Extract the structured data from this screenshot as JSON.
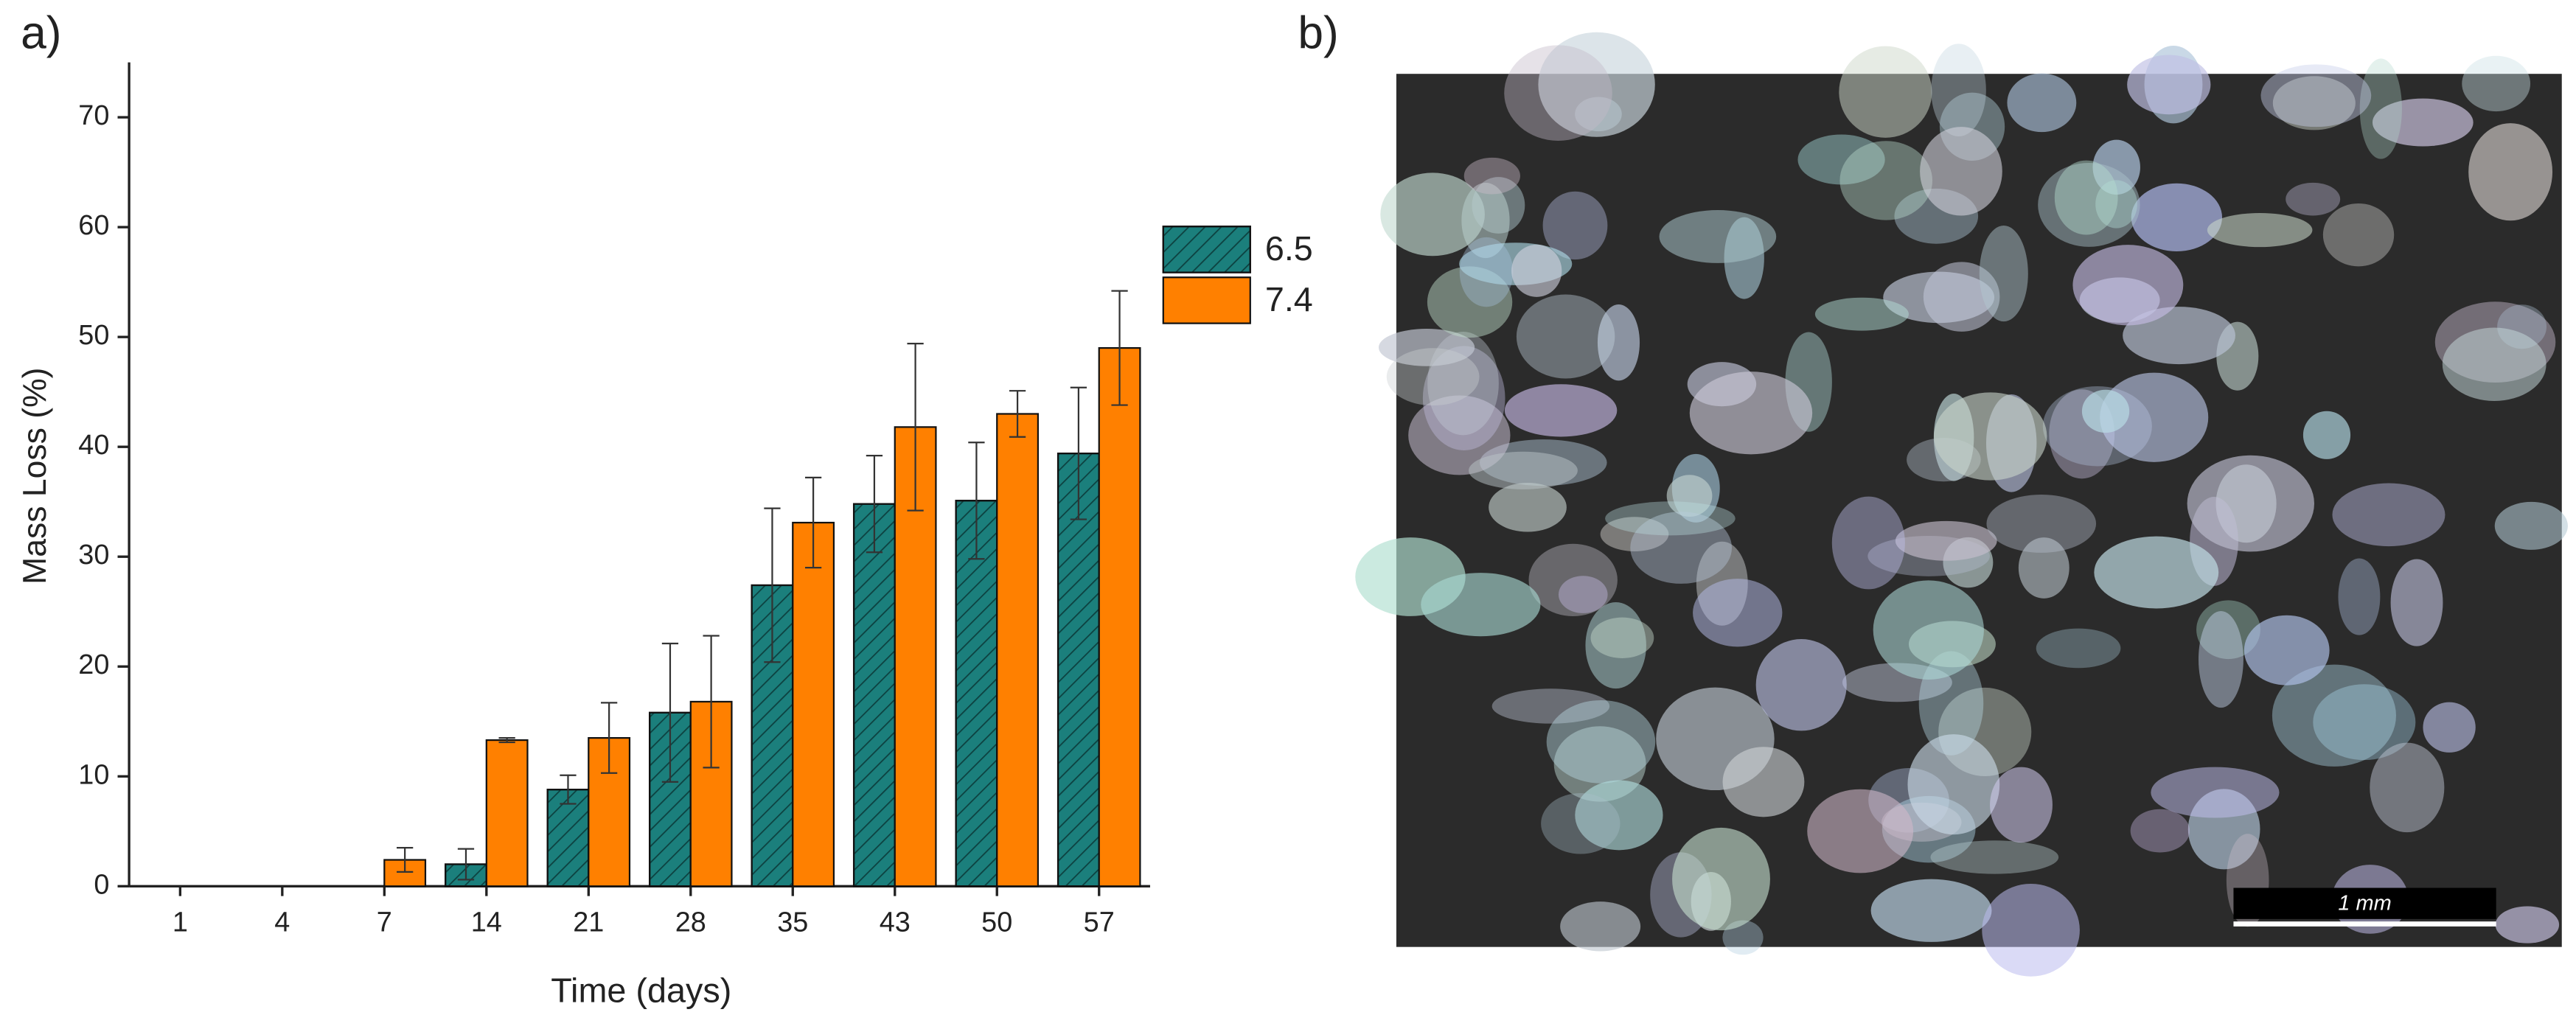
{
  "panel_a": {
    "label": "a)"
  },
  "chart_data": {
    "type": "bar",
    "x_label": "Time (days)",
    "y_label": "Mass Loss (%)",
    "categories": [
      "1",
      "4",
      "7",
      "14",
      "21",
      "28",
      "35",
      "43",
      "50",
      "57"
    ],
    "series": [
      {
        "name": "6.5",
        "color": "#1b7f7c",
        "hatch": true,
        "values": [
          0,
          0,
          0,
          2,
          8.8,
          15.8,
          27.4,
          34.8,
          35.1,
          39.4
        ],
        "errors": [
          null,
          null,
          null,
          1.4,
          1.3,
          6.3,
          7,
          4.4,
          5.3,
          6
        ]
      },
      {
        "name": "7.4",
        "color": "#ff8000",
        "hatch": false,
        "values": [
          0,
          0,
          2.4,
          13.3,
          13.5,
          16.8,
          33.1,
          41.8,
          43,
          49
        ],
        "errors": [
          null,
          null,
          1.1,
          0.2,
          3.2,
          6,
          4.1,
          7.6,
          2.1,
          5.2
        ]
      }
    ],
    "ylim": [
      0,
      75
    ],
    "yticks": [
      0,
      10,
      20,
      30,
      40,
      50,
      60,
      70
    ],
    "grid": false,
    "legend": "right"
  },
  "panel_b": {
    "label": "b)",
    "scale_bar": "1 mm"
  }
}
